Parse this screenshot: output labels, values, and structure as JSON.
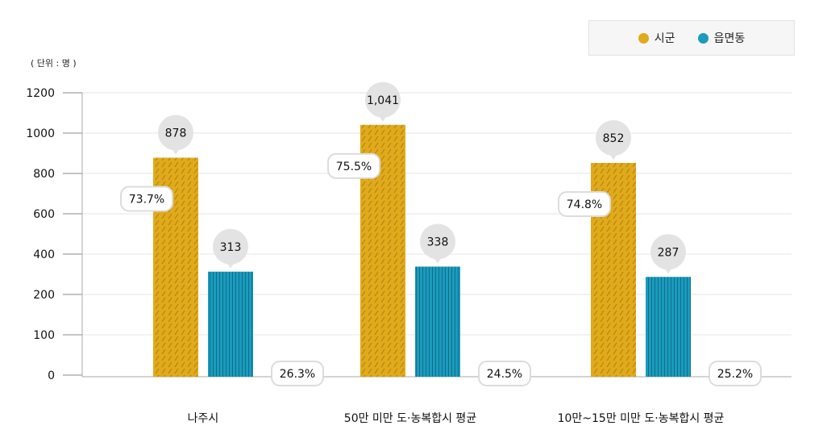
{
  "chart_data": {
    "type": "bar",
    "unit_label": "( 단위 : 명 )",
    "categories": [
      "나주시",
      "50만 미만 도·농복합시 평균",
      "10만~15만 미만 도·농복합시 평균"
    ],
    "y_ticks": [
      0,
      100,
      200,
      400,
      600,
      800,
      1000,
      1200
    ],
    "ylim": [
      0,
      1200
    ],
    "grid": true,
    "legend_position": "top-right",
    "series": [
      {
        "name": "시군",
        "color": "#e0aa1b",
        "values": [
          878,
          1041,
          852
        ],
        "value_labels": [
          "878",
          "1,041",
          "852"
        ],
        "share_labels": [
          "73.7%",
          "75.5%",
          "74.8%"
        ]
      },
      {
        "name": "읍면동",
        "color": "#1b9bbd",
        "values": [
          313,
          338,
          287
        ],
        "value_labels": [
          "313",
          "338",
          "287"
        ],
        "share_labels": [
          "26.3%",
          "24.5%",
          "25.2%"
        ]
      }
    ]
  }
}
